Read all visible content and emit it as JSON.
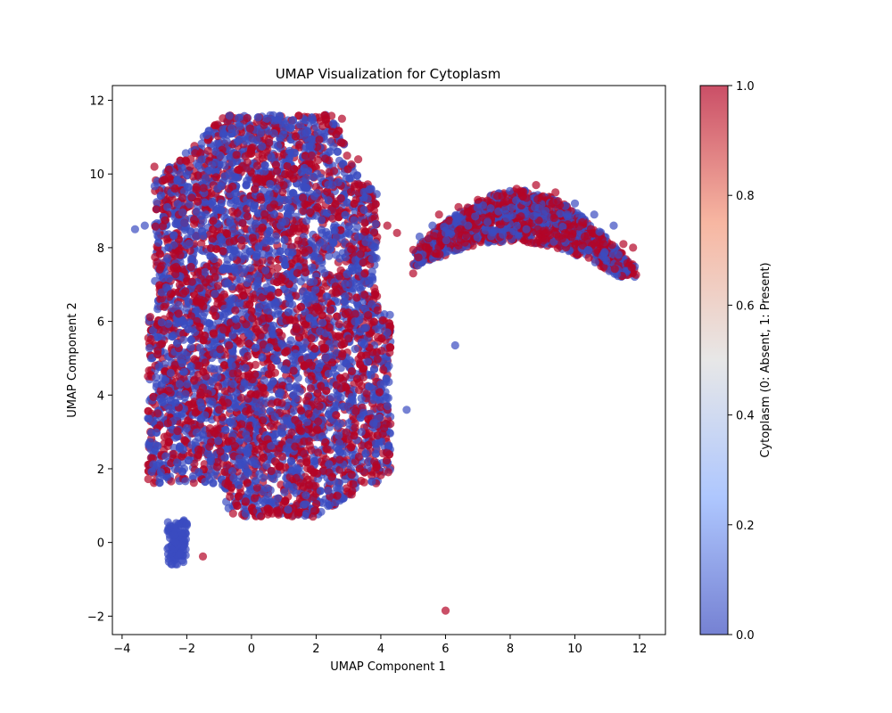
{
  "chart_data": {
    "type": "scatter",
    "title": "UMAP Visualization for Cytoplasm",
    "xlabel": "UMAP Component 1",
    "ylabel": "UMAP Component 2",
    "xlim": [
      -4.3,
      12.8
    ],
    "ylim": [
      -2.5,
      12.4
    ],
    "xticks": [
      -4,
      -2,
      0,
      2,
      4,
      6,
      8,
      10,
      12
    ],
    "yticks": [
      -2,
      0,
      2,
      4,
      6,
      8,
      10,
      12
    ],
    "xtick_labels": [
      "−4",
      "−2",
      "0",
      "2",
      "4",
      "6",
      "8",
      "10",
      "12"
    ],
    "ytick_labels": [
      "−2",
      "0",
      "2",
      "4",
      "6",
      "8",
      "10",
      "12"
    ],
    "grid": false,
    "colormap": "coolwarm",
    "colormap_stops": [
      "#3b4cc0",
      "#8caffe",
      "#dddddd",
      "#f4987a",
      "#b40426"
    ],
    "point_alpha": 0.7,
    "colorbar": {
      "label": "Cytoplasm (0: Absent, 1: Present)",
      "range": [
        0.0,
        1.0
      ],
      "ticks": [
        0.0,
        0.2,
        0.4,
        0.6,
        0.8,
        1.0
      ],
      "tick_labels": [
        "0.0",
        "0.2",
        "0.4",
        "0.6",
        "0.8",
        "1.0"
      ]
    },
    "clusters": [
      {
        "name": "main-blob",
        "center": [
          1.1,
          6.2
        ],
        "extent": [
          -3.0,
          4.3,
          0.6,
          11.6
        ]
      },
      {
        "name": "arc",
        "center": [
          8.5,
          8.6
        ],
        "extent": [
          5.0,
          11.9,
          7.3,
          9.7
        ]
      },
      {
        "name": "small-left",
        "center": [
          -2.3,
          0.0
        ],
        "extent": [
          -2.6,
          -2.0,
          -0.6,
          0.6
        ]
      }
    ],
    "points": [
      [
        -3.6,
        8.5,
        0
      ],
      [
        -3.3,
        8.6,
        0
      ],
      [
        -3.0,
        10.2,
        1
      ],
      [
        -2.9,
        3.5,
        1
      ],
      [
        -2.7,
        6.4,
        1
      ],
      [
        -2.6,
        9.1,
        0
      ],
      [
        -2.5,
        4.6,
        0
      ],
      [
        -2.4,
        2.4,
        1
      ],
      [
        -2.2,
        7.8,
        1
      ],
      [
        -2.1,
        5.5,
        0
      ],
      [
        -2.0,
        3.1,
        0
      ],
      [
        -1.9,
        10.2,
        1
      ],
      [
        -1.8,
        1.8,
        0
      ],
      [
        -1.6,
        6.9,
        1
      ],
      [
        -1.5,
        4.2,
        1
      ],
      [
        -1.4,
        8.9,
        0
      ],
      [
        -1.3,
        2.6,
        1
      ],
      [
        -1.2,
        5.9,
        0
      ],
      [
        -1.1,
        10.6,
        0
      ],
      [
        -1.0,
        3.6,
        1
      ],
      [
        -0.9,
        7.4,
        0
      ],
      [
        -0.8,
        1.6,
        1
      ],
      [
        -0.7,
        9.6,
        1
      ],
      [
        -0.6,
        4.8,
        0
      ],
      [
        -0.5,
        6.3,
        1
      ],
      [
        -0.4,
        2.1,
        0
      ],
      [
        -0.3,
        8.2,
        1
      ],
      [
        -0.2,
        10.9,
        0
      ],
      [
        -0.1,
        3.9,
        1
      ],
      [
        0.0,
        5.6,
        0
      ],
      [
        0.1,
        1.2,
        1
      ],
      [
        0.2,
        7.1,
        0
      ],
      [
        0.3,
        9.3,
        1
      ],
      [
        0.4,
        4.4,
        0
      ],
      [
        0.5,
        2.8,
        1
      ],
      [
        0.6,
        6.7,
        1
      ],
      [
        0.7,
        11.1,
        0
      ],
      [
        0.8,
        0.8,
        1
      ],
      [
        0.9,
        8.6,
        0
      ],
      [
        1.0,
        3.3,
        0
      ],
      [
        1.1,
        5.2,
        1
      ],
      [
        1.2,
        10.0,
        1
      ],
      [
        1.3,
        1.5,
        0
      ],
      [
        1.4,
        7.7,
        1
      ],
      [
        1.5,
        4.1,
        0
      ],
      [
        1.6,
        9.0,
        1
      ],
      [
        1.7,
        2.3,
        1
      ],
      [
        1.8,
        6.1,
        0
      ],
      [
        1.9,
        0.7,
        1
      ],
      [
        2.0,
        8.0,
        0
      ],
      [
        2.1,
        3.7,
        1
      ],
      [
        2.2,
        11.3,
        1
      ],
      [
        2.3,
        5.0,
        0
      ],
      [
        2.4,
        1.9,
        1
      ],
      [
        2.5,
        9.7,
        0
      ],
      [
        2.6,
        6.8,
        1
      ],
      [
        2.7,
        2.9,
        0
      ],
      [
        2.8,
        11.5,
        1
      ],
      [
        2.9,
        4.5,
        1
      ],
      [
        3.0,
        8.4,
        0
      ],
      [
        3.1,
        1.3,
        1
      ],
      [
        3.2,
        6.0,
        0
      ],
      [
        3.3,
        10.4,
        1
      ],
      [
        3.4,
        3.0,
        0
      ],
      [
        3.5,
        7.3,
        1
      ],
      [
        3.6,
        4.9,
        0
      ],
      [
        3.7,
        9.1,
        1
      ],
      [
        3.8,
        2.2,
        1
      ],
      [
        3.9,
        6.3,
        1
      ],
      [
        4.0,
        4.3,
        0
      ],
      [
        4.1,
        3.1,
        1
      ],
      [
        4.2,
        8.6,
        1
      ],
      [
        4.2,
        5.7,
        0
      ],
      [
        4.5,
        8.4,
        1
      ],
      [
        4.8,
        3.6,
        0
      ],
      [
        5.0,
        7.3,
        1
      ],
      [
        5.2,
        8.3,
        0
      ],
      [
        5.4,
        8.0,
        1
      ],
      [
        5.6,
        8.6,
        0
      ],
      [
        5.8,
        8.9,
        1
      ],
      [
        6.0,
        -1.85,
        1
      ],
      [
        6.0,
        8.4,
        0
      ],
      [
        6.3,
        5.35,
        0
      ],
      [
        6.4,
        9.1,
        1
      ],
      [
        6.7,
        8.6,
        0
      ],
      [
        7.0,
        9.3,
        1
      ],
      [
        7.3,
        8.7,
        0
      ],
      [
        7.6,
        9.4,
        1
      ],
      [
        7.9,
        8.8,
        0
      ],
      [
        8.2,
        9.6,
        1
      ],
      [
        8.5,
        8.5,
        0
      ],
      [
        8.8,
        9.7,
        1
      ],
      [
        9.1,
        9.0,
        0
      ],
      [
        9.4,
        9.5,
        1
      ],
      [
        9.7,
        8.4,
        1
      ],
      [
        10.0,
        9.2,
        0
      ],
      [
        10.3,
        8.3,
        1
      ],
      [
        10.6,
        8.9,
        0
      ],
      [
        10.9,
        8.1,
        1
      ],
      [
        11.2,
        8.6,
        0
      ],
      [
        11.5,
        8.1,
        1
      ],
      [
        11.8,
        8.0,
        1
      ],
      [
        -2.4,
        0.2,
        0
      ],
      [
        -2.2,
        -0.3,
        0
      ],
      [
        -2.0,
        0.5,
        0
      ],
      [
        -1.5,
        -0.38,
        1
      ]
    ]
  }
}
